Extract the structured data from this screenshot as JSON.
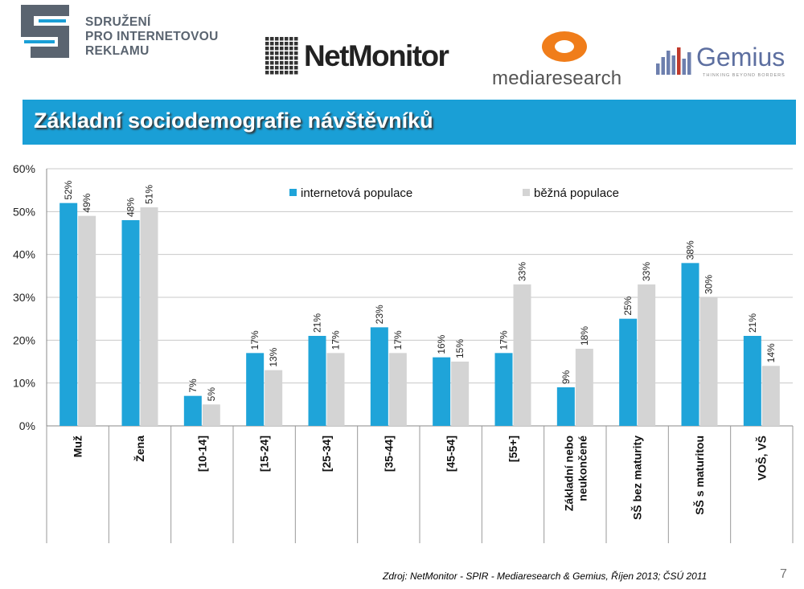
{
  "logos": {
    "sdruzeni": {
      "lines": [
        "SDRUŽENÍ",
        "PRO INTERNETOVOU",
        "REKLAMU"
      ],
      "color": "#5a6470",
      "accent": "#1a9fd6"
    },
    "netmonitor": {
      "text": "NetMonitor"
    },
    "mediaresearch": {
      "text": "mediaresearch",
      "accent": "#f07d1a"
    },
    "gemius": {
      "text": "Gemius",
      "tagline": "THINKING BEYOND BORDERS"
    }
  },
  "title": "Základní sociodemografie návštěvníků",
  "source": "Zdroj: NetMonitor - SPIR - Mediaresearch & Gemius, Říjen 2013; ČSÚ 2011",
  "page_number": "7",
  "colors": {
    "title_bar": "#1a9fd6",
    "series_internet": "#1fa4d9",
    "series_common": "#d4d4d4"
  },
  "chart_data": {
    "type": "bar",
    "categories": [
      "Muž",
      "Žena",
      "[10-14]",
      "[15-24]",
      "[25-34]",
      "[35-44]",
      "[45-54]",
      "[55+]",
      "Základní nebo neukončené",
      "SŠ bez maturity",
      "SŠ s maturitou",
      "VOŠ, VŠ"
    ],
    "series": [
      {
        "name": "internetová populace",
        "values": [
          52,
          48,
          7,
          17,
          21,
          23,
          16,
          17,
          9,
          25,
          38,
          21
        ]
      },
      {
        "name": "běžná populace",
        "values": [
          49,
          51,
          5,
          13,
          17,
          17,
          15,
          33,
          18,
          33,
          30,
          14
        ]
      }
    ],
    "ylim": [
      0,
      60
    ],
    "yticks": [
      "0%",
      "10%",
      "20%",
      "30%",
      "40%",
      "50%",
      "60%"
    ],
    "data_label_suffix": "%",
    "grid": true,
    "legend_position": "top-right"
  }
}
